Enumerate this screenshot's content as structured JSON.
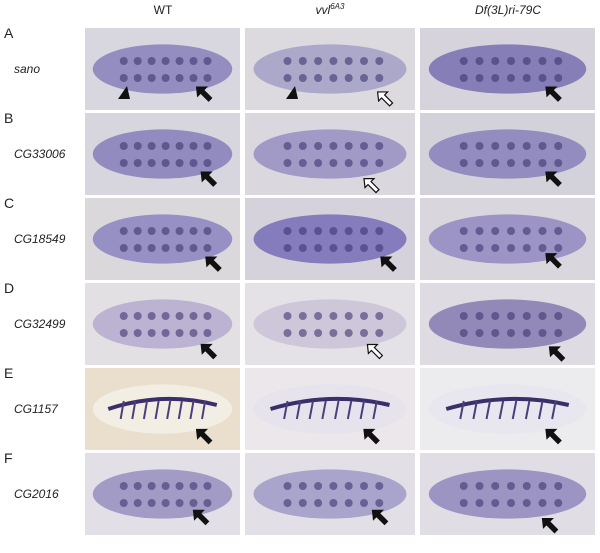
{
  "columns": [
    {
      "label": "WT"
    },
    {
      "label": "vvl",
      "superscript": "6A3"
    },
    {
      "label": "Df(3L)ri-79C"
    }
  ],
  "rows": [
    {
      "letter": "A",
      "gene": "sano"
    },
    {
      "letter": "B",
      "gene": "CG33006"
    },
    {
      "letter": "C",
      "gene": "CG18549"
    },
    {
      "letter": "D",
      "gene": "CG32499"
    },
    {
      "letter": "E",
      "gene": "CG1157"
    },
    {
      "letter": "F",
      "gene": "CG2016"
    }
  ]
}
